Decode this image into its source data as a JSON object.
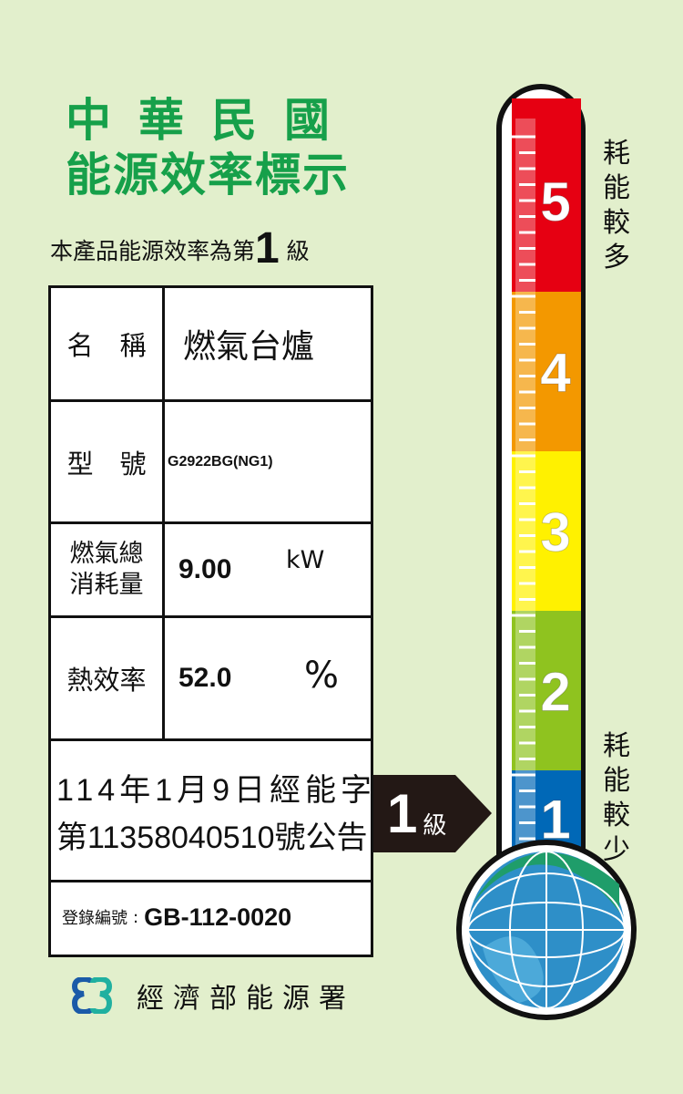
{
  "title": {
    "line1": "中華民國",
    "line2": "能源效率標示"
  },
  "subtitle": {
    "prefix": "本產品能源效率為第",
    "grade": "1",
    "suffix": "級"
  },
  "table": {
    "name_label": "名　稱",
    "name_value": "燃氣台爐",
    "model_label": "型　號",
    "model_value": "G2922BG(NG1)",
    "consumption_label_1": "燃氣總",
    "consumption_label_2": "消耗量",
    "consumption_value": "9.00",
    "consumption_unit": "kW",
    "efficiency_label": "熱效率",
    "efficiency_value": "52.0",
    "efficiency_unit": "%",
    "announcement_line1": "114年1月9日經能字",
    "announcement_line2": "第11358040510號公告",
    "registration_label": "登錄編號",
    "registration_value": "GB-112-0020"
  },
  "grade_arrow": {
    "grade": "1",
    "unit": "級"
  },
  "thermometer": {
    "levels": [
      {
        "label": "5",
        "color": "#e60012"
      },
      {
        "label": "4",
        "color": "#f39800"
      },
      {
        "label": "3",
        "color": "#fff100"
      },
      {
        "label": "2",
        "color": "#8fc31f"
      },
      {
        "label": "1",
        "color": "#0068b7"
      }
    ],
    "current_level": 1
  },
  "side": {
    "top": "耗能較多",
    "bottom": "耗能較少"
  },
  "footer": {
    "agency": "經濟部能源署"
  },
  "colors": {
    "background": "#e2efcc",
    "title_green": "#16a04a"
  }
}
